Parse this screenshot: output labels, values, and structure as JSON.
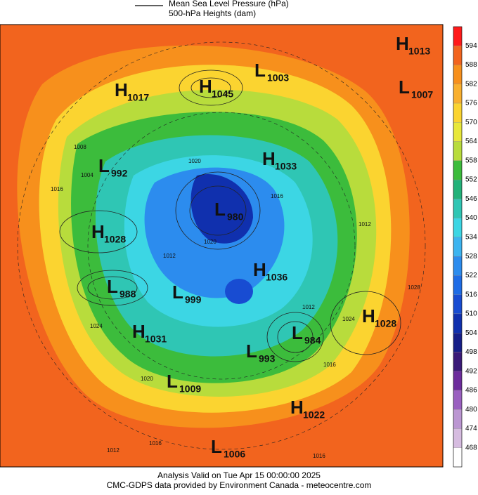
{
  "legend": {
    "pressure": "Mean Sea Level Pressure (hPa)",
    "heights": "500-hPa Heights (dam)"
  },
  "colorbar": {
    "labels": [
      594,
      588,
      582,
      576,
      570,
      564,
      558,
      552,
      546,
      540,
      534,
      528,
      522,
      516,
      510,
      504,
      498,
      492,
      486,
      480,
      474,
      468
    ],
    "colors": [
      "#ff1a1a",
      "#f2641e",
      "#f7901c",
      "#f9b02e",
      "#fbd430",
      "#e8e83a",
      "#b8dc3c",
      "#3cbc3c",
      "#22b27a",
      "#2fc6b4",
      "#3cd6e4",
      "#3cb4f0",
      "#2c8cee",
      "#1e6ce6",
      "#184cd2",
      "#1030ae",
      "#161e88",
      "#3a1a78",
      "#6c2c9c",
      "#9a60c0",
      "#bb96d2",
      "#d6bce0",
      "#ffffff"
    ]
  },
  "centers": [
    {
      "letter": "H",
      "value": "1013"
    },
    {
      "letter": "L",
      "value": "1003"
    },
    {
      "letter": "H",
      "value": "1017"
    },
    {
      "letter": "H",
      "value": "1045"
    },
    {
      "letter": "L",
      "value": "1007"
    },
    {
      "letter": "H",
      "value": "1033"
    },
    {
      "letter": "L",
      "value": "992"
    },
    {
      "letter": "L",
      "value": "980"
    },
    {
      "letter": "H",
      "value": "1028"
    },
    {
      "letter": "H",
      "value": "1036"
    },
    {
      "letter": "L",
      "value": "988"
    },
    {
      "letter": "L",
      "value": "999"
    },
    {
      "letter": "H",
      "value": "1028"
    },
    {
      "letter": "L",
      "value": "984"
    },
    {
      "letter": "H",
      "value": "1031"
    },
    {
      "letter": "L",
      "value": "993"
    },
    {
      "letter": "L",
      "value": "1009"
    },
    {
      "letter": "H",
      "value": "1022"
    },
    {
      "letter": "L",
      "value": "1006"
    }
  ],
  "contour_labels": [
    "1008",
    "1004",
    "1016",
    "1020",
    "1016",
    "1020",
    "1012",
    "1024",
    "1020",
    "1016",
    "1012",
    "1016",
    "1012",
    "1028",
    "1024",
    "1012",
    "1016"
  ],
  "footer": {
    "valid": "Analysis Valid on Tue Apr 15 00:00:00 2025",
    "credit": "CMC-GDPS data provided by Environment Canada - meteocentre.com"
  }
}
